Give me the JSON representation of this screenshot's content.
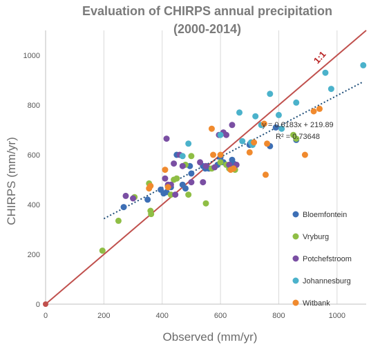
{
  "chart_data": {
    "type": "scatter",
    "title_lines": [
      "Evaluation of CHIRPS annual precipitation",
      "(2000-2014)"
    ],
    "xlabel": "Observed (mm/yr)",
    "ylabel": "CHIRPS (mm/yr)",
    "xlim": [
      0,
      1100
    ],
    "ylim": [
      0,
      1100
    ],
    "xticks": [
      0,
      200,
      400,
      600,
      800,
      1000
    ],
    "yticks": [
      0,
      200,
      400,
      600,
      800,
      1000
    ],
    "grid": "vertical",
    "legend_position": "bottom-right",
    "series": [
      {
        "name": "Bloemfontein",
        "color": "#3d6fb5",
        "points": [
          [
            268,
            390
          ],
          [
            350,
            420
          ],
          [
            395,
            460
          ],
          [
            405,
            445
          ],
          [
            415,
            450
          ],
          [
            430,
            470
          ],
          [
            450,
            600
          ],
          [
            470,
            480
          ],
          [
            480,
            465
          ],
          [
            495,
            555
          ],
          [
            540,
            555
          ],
          [
            548,
            545
          ],
          [
            560,
            545
          ],
          [
            590,
            560
          ],
          [
            600,
            590
          ],
          [
            610,
            570
          ],
          [
            640,
            580
          ],
          [
            645,
            565
          ],
          [
            700,
            640
          ],
          [
            770,
            635
          ],
          [
            790,
            710
          ],
          [
            860,
            660
          ],
          [
            500,
            525
          ]
        ]
      },
      {
        "name": "Vryburg",
        "color": "#8fbe45",
        "points": [
          [
            195,
            215
          ],
          [
            250,
            335
          ],
          [
            305,
            430
          ],
          [
            355,
            485
          ],
          [
            360,
            375
          ],
          [
            362,
            362
          ],
          [
            420,
            475
          ],
          [
            430,
            440
          ],
          [
            440,
            500
          ],
          [
            450,
            505
          ],
          [
            480,
            560
          ],
          [
            490,
            440
          ],
          [
            500,
            595
          ],
          [
            550,
            405
          ],
          [
            570,
            545
          ],
          [
            600,
            570
          ],
          [
            620,
            560
          ],
          [
            630,
            545
          ],
          [
            650,
            540
          ],
          [
            850,
            680
          ],
          [
            860,
            665
          ]
        ]
      },
      {
        "name": "Potchefstroom",
        "color": "#7a4fa3",
        "points": [
          [
            275,
            435
          ],
          [
            300,
            425
          ],
          [
            410,
            505
          ],
          [
            415,
            665
          ],
          [
            420,
            480
          ],
          [
            430,
            480
          ],
          [
            440,
            565
          ],
          [
            445,
            440
          ],
          [
            460,
            600
          ],
          [
            470,
            555
          ],
          [
            500,
            490
          ],
          [
            530,
            570
          ],
          [
            540,
            490
          ],
          [
            550,
            555
          ],
          [
            580,
            550
          ],
          [
            595,
            680
          ],
          [
            610,
            690
          ],
          [
            620,
            680
          ],
          [
            630,
            560
          ],
          [
            640,
            720
          ],
          [
            655,
            560
          ]
        ]
      },
      {
        "name": "Johannesburg",
        "color": "#4bb2cb",
        "points": [
          [
            470,
            595
          ],
          [
            490,
            645
          ],
          [
            600,
            680
          ],
          [
            665,
            770
          ],
          [
            675,
            655
          ],
          [
            705,
            650
          ],
          [
            710,
            640
          ],
          [
            720,
            755
          ],
          [
            740,
            720
          ],
          [
            770,
            845
          ],
          [
            800,
            760
          ],
          [
            810,
            705
          ],
          [
            860,
            810
          ],
          [
            960,
            930
          ],
          [
            980,
            865
          ],
          [
            1090,
            960
          ]
        ]
      },
      {
        "name": "Witbank",
        "color": "#f08a2e",
        "points": [
          [
            355,
            465
          ],
          [
            360,
            475
          ],
          [
            410,
            540
          ],
          [
            420,
            470
          ],
          [
            570,
            705
          ],
          [
            575,
            600
          ],
          [
            600,
            600
          ],
          [
            635,
            540
          ],
          [
            645,
            545
          ],
          [
            700,
            610
          ],
          [
            715,
            650
          ],
          [
            750,
            725
          ],
          [
            755,
            520
          ],
          [
            760,
            645
          ],
          [
            890,
            600
          ],
          [
            920,
            775
          ],
          [
            940,
            785
          ]
        ]
      }
    ],
    "reference_line": {
      "label": "1:1",
      "color": "#c0504d",
      "slope": 1,
      "intercept": 0
    },
    "trendline": {
      "equation": "y = 0.6183x + 219.89",
      "r2": "R² = 0.73648",
      "slope": 0.6183,
      "intercept": 219.89,
      "x_range": [
        200,
        1090
      ],
      "color": "#1f4e79"
    },
    "origin_marker": {
      "x": 0,
      "y": 0,
      "color": "#c0504d"
    }
  }
}
